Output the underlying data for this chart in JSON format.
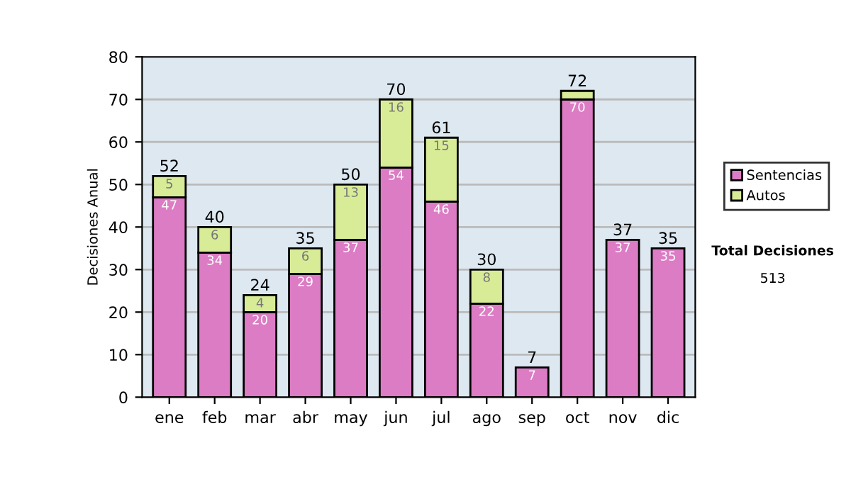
{
  "chart_data": {
    "type": "bar",
    "stacked": true,
    "ylabel": "Decisiones Anual",
    "categories": [
      "ene",
      "feb",
      "mar",
      "abr",
      "may",
      "jun",
      "jul",
      "ago",
      "sep",
      "oct",
      "nov",
      "dic"
    ],
    "series": [
      {
        "name": "Sentencias",
        "color": "#dc7cc4",
        "values": [
          47,
          34,
          20,
          29,
          37,
          54,
          46,
          22,
          7,
          70,
          37,
          35
        ],
        "value_labels": [
          "47",
          "34",
          "20",
          "29",
          "37",
          "54",
          "46",
          "22",
          "7",
          "70",
          "37",
          "35"
        ]
      },
      {
        "name": "Autos",
        "color": "#d8ec98",
        "values": [
          5,
          6,
          4,
          6,
          13,
          16,
          15,
          8,
          null,
          2,
          null,
          null
        ],
        "value_labels": [
          "5",
          "6",
          "4",
          "6",
          "13",
          "16",
          "15",
          "8",
          null,
          null,
          null,
          null
        ]
      }
    ],
    "totals": [
      "52",
      "40",
      "24",
      "35",
      "50",
      "70",
      "61",
      "30",
      "7",
      "72",
      "37",
      "35"
    ],
    "ylim": [
      0,
      80
    ],
    "yticks": [
      0,
      10,
      20,
      30,
      40,
      50,
      60,
      70,
      80
    ],
    "grid": "y",
    "legend": "right",
    "annotations": [
      "Total Decisiones",
      "513"
    ]
  }
}
